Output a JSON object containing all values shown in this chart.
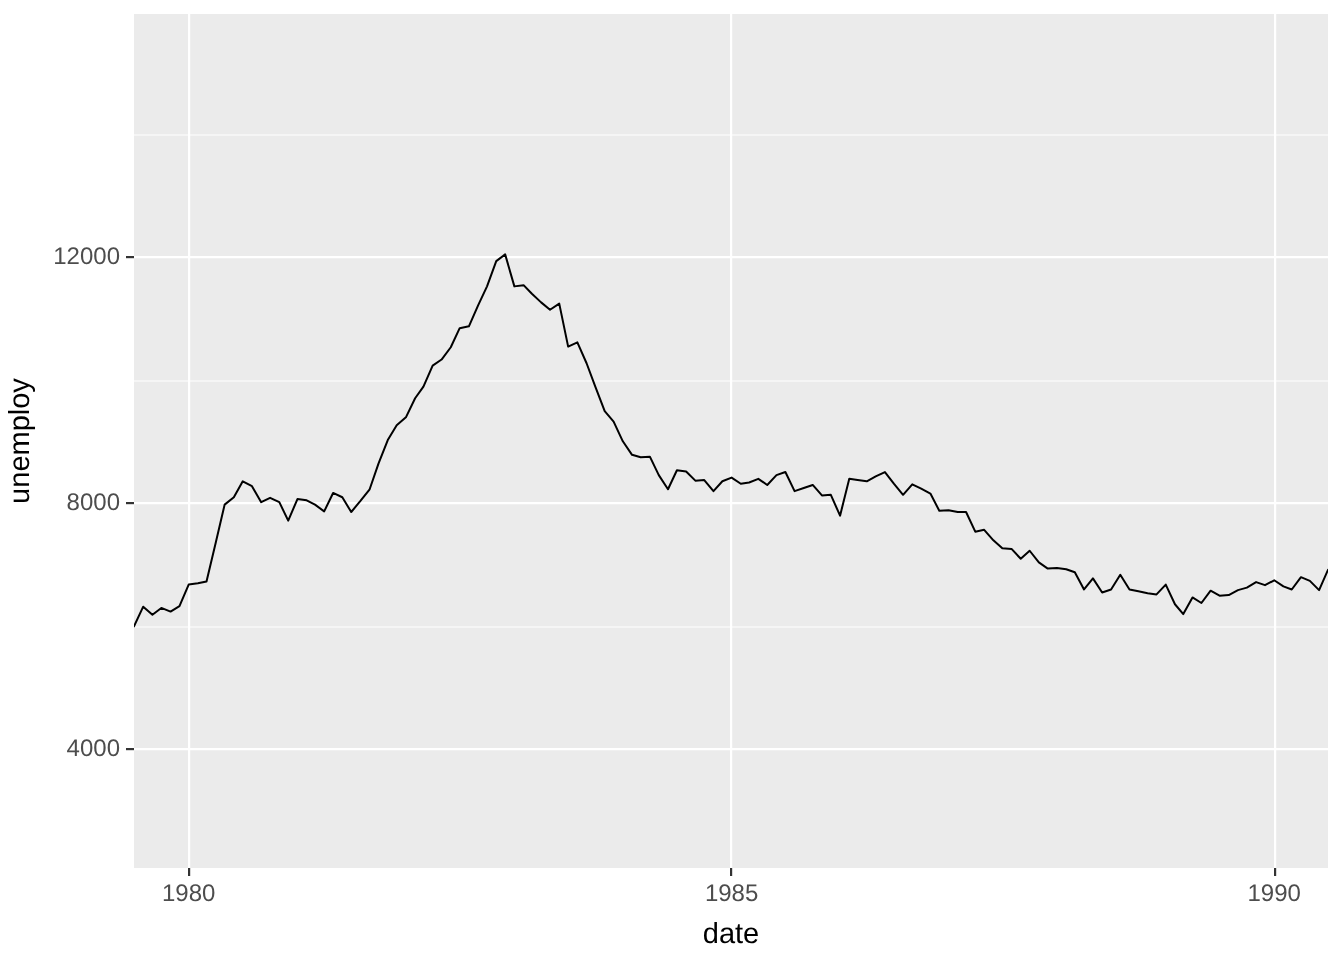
{
  "chart_data": {
    "type": "line",
    "xlabel": "date",
    "ylabel": "unemploy",
    "x": [
      "1979-07",
      "1979-08",
      "1979-09",
      "1979-10",
      "1979-11",
      "1979-12",
      "1980-01",
      "1980-02",
      "1980-03",
      "1980-04",
      "1980-05",
      "1980-06",
      "1980-07",
      "1980-08",
      "1980-09",
      "1980-10",
      "1980-11",
      "1980-12",
      "1981-01",
      "1981-02",
      "1981-03",
      "1981-04",
      "1981-05",
      "1981-06",
      "1981-07",
      "1981-08",
      "1981-09",
      "1981-10",
      "1981-11",
      "1981-12",
      "1982-01",
      "1982-02",
      "1982-03",
      "1982-04",
      "1982-05",
      "1982-06",
      "1982-07",
      "1982-08",
      "1982-09",
      "1982-10",
      "1982-11",
      "1982-12",
      "1983-01",
      "1983-02",
      "1983-03",
      "1983-04",
      "1983-05",
      "1983-06",
      "1983-07",
      "1983-08",
      "1983-09",
      "1983-10",
      "1983-11",
      "1983-12",
      "1984-01",
      "1984-02",
      "1984-03",
      "1984-04",
      "1984-05",
      "1984-06",
      "1984-07",
      "1984-08",
      "1984-09",
      "1984-10",
      "1984-11",
      "1984-12",
      "1985-01",
      "1985-02",
      "1985-03",
      "1985-04",
      "1985-05",
      "1985-06",
      "1985-07",
      "1985-08",
      "1985-09",
      "1985-10",
      "1985-11",
      "1985-12",
      "1986-01",
      "1986-02",
      "1986-03",
      "1986-04",
      "1986-05",
      "1986-06",
      "1986-07",
      "1986-08",
      "1986-09",
      "1986-10",
      "1986-11",
      "1986-12",
      "1987-01",
      "1987-02",
      "1987-03",
      "1987-04",
      "1987-05",
      "1987-06",
      "1987-07",
      "1987-08",
      "1987-09",
      "1987-10",
      "1987-11",
      "1987-12",
      "1988-01",
      "1988-02",
      "1988-03",
      "1988-04",
      "1988-05",
      "1988-06",
      "1988-07",
      "1988-08",
      "1988-09",
      "1988-10",
      "1988-11",
      "1988-12",
      "1989-01",
      "1989-02",
      "1989-03",
      "1989-04",
      "1989-05",
      "1989-06",
      "1989-07",
      "1989-08",
      "1989-09",
      "1989-10",
      "1989-11",
      "1989-12",
      "1990-01",
      "1990-02",
      "1990-03",
      "1990-04",
      "1990-05",
      "1990-06",
      "1990-07"
    ],
    "series": [
      {
        "color": "#000000",
        "values": [
          6000,
          6320,
          6190,
          6300,
          6240,
          6330,
          6680,
          6700,
          6730,
          7360,
          7980,
          8100,
          8360,
          8280,
          8020,
          8090,
          8020,
          7720,
          8070,
          8050,
          7980,
          7870,
          8170,
          8100,
          7860,
          8040,
          8230,
          8650,
          9030,
          9270,
          9400,
          9710,
          9900,
          10240,
          10340,
          10540,
          10850,
          10880,
          11220,
          11530,
          11940,
          12050,
          11530,
          11550,
          11410,
          11270,
          11150,
          11250,
          10550,
          10620,
          10280,
          9890,
          9500,
          9330,
          9010,
          8790,
          8750,
          8760,
          8460,
          8230,
          8540,
          8520,
          8370,
          8380,
          8200,
          8360,
          8420,
          8320,
          8340,
          8400,
          8300,
          8460,
          8510,
          8200,
          8250,
          8300,
          8130,
          8140,
          7800,
          8400,
          8380,
          8360,
          8440,
          8510,
          8320,
          8140,
          8310,
          8240,
          8160,
          7880,
          7890,
          7860,
          7860,
          7540,
          7570,
          7400,
          7270,
          7260,
          7100,
          7230,
          7040,
          6940,
          6950,
          6930,
          6880,
          6600,
          6780,
          6550,
          6600,
          6840,
          6600,
          6570,
          6540,
          6520,
          6680,
          6360,
          6200,
          6470,
          6380,
          6580,
          6500,
          6510,
          6590,
          6630,
          6720,
          6670,
          6750,
          6650,
          6600,
          6800,
          6740,
          6590,
          6920
        ]
      }
    ],
    "xlim": [
      "1979-07",
      "1990-07"
    ],
    "ylim": [
      2070,
      15960
    ],
    "xticks": [
      "1980",
      "1985",
      "1990"
    ],
    "yticks": [
      {
        "value": 6000,
        "label": null
      },
      4000,
      8000,
      {
        "value": 10000,
        "label": null
      },
      12000,
      {
        "value": 14000,
        "label": null
      }
    ],
    "grid": true
  }
}
